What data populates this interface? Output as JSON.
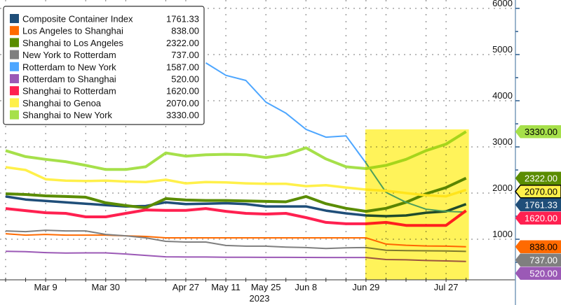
{
  "chart_data": {
    "type": "line",
    "title": "",
    "xlabel": "2023",
    "ylabel": "",
    "ylim": [
      0,
      6000
    ],
    "yticks": [
      1000,
      2000,
      3000,
      4000,
      5000,
      6000
    ],
    "ytick_labels": [
      "1000",
      "2000",
      "3000",
      "4000",
      "5000",
      "6000"
    ],
    "grid": true,
    "legend_position": "top-left",
    "x": [
      "Feb 23",
      "Mar 2",
      "Mar 9",
      "Mar 16",
      "Mar 23",
      "Mar 30",
      "Apr 6",
      "Apr 13",
      "Apr 20",
      "Apr 27",
      "May 4",
      "May 11",
      "May 18",
      "May 25",
      "Jun 1",
      "Jun 8",
      "Jun 15",
      "Jun 22",
      "Jun 29",
      "Jul 6",
      "Jul 13",
      "Jul 20",
      "Jul 27",
      "Aug 3"
    ],
    "xtick_labels": [
      {
        "index": 2,
        "label": "Mar 9"
      },
      {
        "index": 5,
        "label": "Mar 30"
      },
      {
        "index": 9,
        "label": "Apr 27"
      },
      {
        "index": 11,
        "label": "May 11"
      },
      {
        "index": 13,
        "label": "May 25"
      },
      {
        "index": 15,
        "label": "Jun 8"
      },
      {
        "index": 18,
        "label": "Jun 29"
      },
      {
        "index": 22,
        "label": "Jul 27"
      }
    ],
    "year_label": "2023",
    "highlight": {
      "from_index": 18,
      "to_index": 23,
      "color": "#fff35a"
    },
    "series": [
      {
        "name": "Composite Container Index",
        "last": "1761.33",
        "color": "#1f4e79",
        "tag_text": "#ffffff",
        "width": 3.5,
        "values": [
          1925,
          1860,
          1830,
          1800,
          1770,
          1740,
          1710,
          1720,
          1800,
          1760,
          1770,
          1780,
          1760,
          1710,
          1710,
          1710,
          1620,
          1560,
          1515,
          1500,
          1515,
          1575,
          1605,
          1761.33
        ]
      },
      {
        "name": "Los Angeles to Shanghai",
        "last": "838.00",
        "color": "#ff6a00",
        "tag_text": "#000000",
        "width": 2,
        "values": [
          1120,
          1090,
          1105,
          1090,
          1090,
          1090,
          1075,
          1060,
          1030,
          1030,
          1030,
          1030,
          1030,
          1030,
          1030,
          1030,
          1030,
          1030,
          1030,
          895,
          870,
          855,
          850,
          838
        ]
      },
      {
        "name": "Shanghai to Los Angeles",
        "last": "2322.00",
        "color": "#5a8c00",
        "tag_text": "#ffffff",
        "width": 4,
        "values": [
          1985,
          1970,
          1940,
          1925,
          1910,
          1790,
          1730,
          1680,
          1880,
          1850,
          1840,
          1840,
          1830,
          1820,
          1810,
          1925,
          1770,
          1670,
          1605,
          1670,
          1800,
          1985,
          2120,
          2322
        ]
      },
      {
        "name": "New York to Rotterdam",
        "last": "737.00",
        "color": "#7f7f7f",
        "tag_text": "#ffffff",
        "width": 2,
        "values": [
          1180,
          1165,
          1195,
          1180,
          1180,
          1105,
          1075,
          1030,
          955,
          940,
          940,
          865,
          850,
          850,
          830,
          820,
          800,
          815,
          820,
          760,
          755,
          750,
          745,
          737
        ]
      },
      {
        "name": "Rotterdam to New York",
        "last": "1587.00",
        "color": "#4da6ff",
        "tag_text": "#ffffff",
        "width": 2,
        "values": [
          null,
          null,
          null,
          null,
          null,
          null,
          null,
          null,
          null,
          null,
          4820,
          4550,
          4440,
          3970,
          3730,
          3380,
          3210,
          3240,
          2650,
          2015,
          1800,
          1650,
          1605,
          1587
        ]
      },
      {
        "name": "Rotterdam to Shanghai",
        "last": "520.00",
        "color": "#9b59b6",
        "tag_text": "#ffffff",
        "width": 2,
        "values": [
          740,
          730,
          710,
          700,
          705,
          705,
          680,
          650,
          620,
          615,
          615,
          610,
          610,
          608,
          607,
          606,
          605,
          605,
          605,
          560,
          555,
          540,
          530,
          520
        ]
      },
      {
        "name": "Shanghai to Rotterdam",
        "last": "1620.00",
        "color": "#ff2050",
        "tag_text": "#ffffff",
        "width": 4,
        "values": [
          1665,
          1620,
          1575,
          1560,
          1485,
          1485,
          1560,
          1635,
          1625,
          1625,
          1665,
          1605,
          1560,
          1545,
          1560,
          1470,
          1365,
          1335,
          1335,
          1365,
          1300,
          1300,
          1300,
          1620
        ]
      },
      {
        "name": "Shanghai to Genoa",
        "last": "2070.00",
        "color": "#fff04a",
        "tag_text": "#000000",
        "width": 3.5,
        "values": [
          2560,
          2500,
          2300,
          2270,
          2260,
          2270,
          2250,
          2240,
          2290,
          2210,
          2240,
          2230,
          2210,
          2200,
          2200,
          2150,
          2170,
          2120,
          2075,
          2050,
          2000,
          1950,
          1930,
          2070
        ]
      },
      {
        "name": "Shanghai to New York",
        "last": "3330.00",
        "color": "#a6e04a",
        "tag_text": "#000000",
        "width": 4,
        "values": [
          2920,
          2790,
          2730,
          2680,
          2600,
          2510,
          2510,
          2570,
          2870,
          2800,
          2830,
          2840,
          2830,
          2770,
          2830,
          2980,
          2740,
          2570,
          2530,
          2600,
          2730,
          2920,
          3060,
          3330
        ]
      }
    ],
    "tags_shown": [
      "Composite Container Index",
      "New York to Rotterdam",
      "Rotterdam to Shanghai",
      "Los Angeles to Shanghai",
      "Shanghai to Rotterdam",
      "Shanghai to Genoa",
      "Shanghai to Los Angeles",
      "Shanghai to New York"
    ]
  }
}
